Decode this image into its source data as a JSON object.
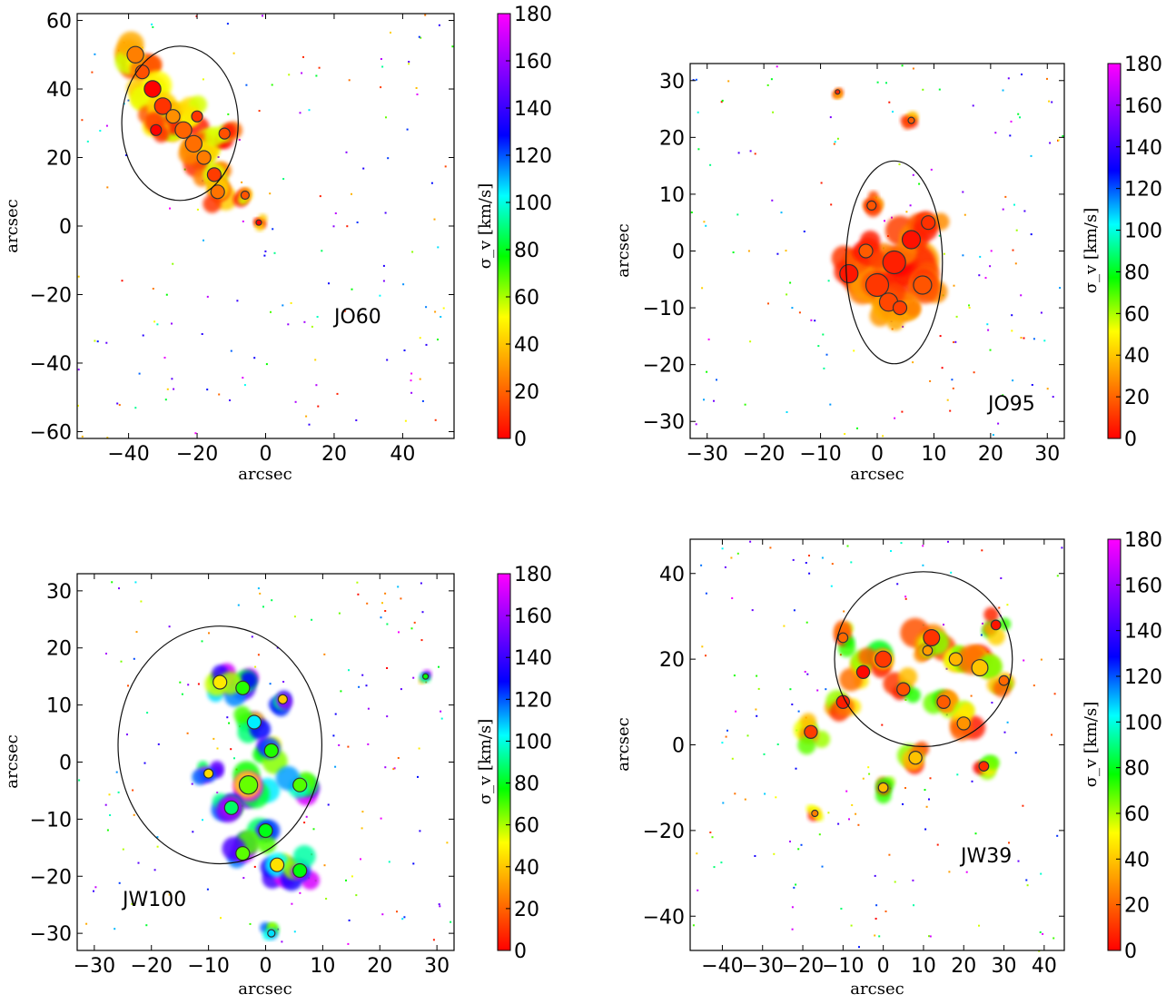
{
  "colormap": {
    "name": "gist_rainbow_r",
    "stops": [
      "#ff0000",
      "#ff8000",
      "#ffff00",
      "#00ff00",
      "#00ffff",
      "#0000ff",
      "#8000ff",
      "#ff00ff"
    ]
  },
  "chart_data": [
    {
      "type": "heatmap",
      "panel": "JO60",
      "label": "JO60",
      "xlabel": "arcsec",
      "ylabel": "arcsec",
      "xlim": [
        -55,
        55
      ],
      "ylim": [
        -62,
        62
      ],
      "xticks": [
        -40,
        -20,
        0,
        20,
        40
      ],
      "yticks": [
        -60,
        -40,
        -20,
        0,
        20,
        40,
        60
      ],
      "xtick_labels": [
        "−40",
        "−20",
        "0",
        "20",
        "40"
      ],
      "ytick_labels": [
        "−60",
        "−40",
        "−20",
        "0",
        "20",
        "40",
        "60"
      ],
      "colorbar": {
        "label": "σ_v [km/s]",
        "min": 0,
        "max": 180,
        "ticks": [
          0,
          20,
          40,
          60,
          80,
          100,
          120,
          140,
          160,
          180
        ]
      },
      "dominant_sigma_range": [
        0,
        60
      ],
      "contour_center": [
        -25,
        30
      ],
      "blobs": [
        [
          -38,
          50,
          3
        ],
        [
          -36,
          45,
          2.5
        ],
        [
          -33,
          40,
          3
        ],
        [
          -30,
          35,
          3
        ],
        [
          -27,
          32,
          2.5
        ],
        [
          -24,
          28,
          3
        ],
        [
          -21,
          24,
          3
        ],
        [
          -18,
          20,
          2.5
        ],
        [
          -15,
          15,
          2.5
        ],
        [
          -14,
          10,
          2.5
        ],
        [
          -20,
          32,
          2
        ],
        [
          -12,
          27,
          2
        ],
        [
          -32,
          28,
          2
        ],
        [
          -6,
          9,
          1.5
        ],
        [
          -2,
          1,
          1
        ]
      ]
    },
    {
      "type": "heatmap",
      "panel": "JO95",
      "label": "JO95",
      "xlabel": "arcsec",
      "ylabel": "arcsec",
      "xlim": [
        -33,
        33
      ],
      "ylim": [
        -33,
        33
      ],
      "xticks": [
        -30,
        -20,
        -10,
        0,
        10,
        20,
        30
      ],
      "yticks": [
        -30,
        -20,
        -10,
        0,
        10,
        20,
        30
      ],
      "xtick_labels": [
        "−30",
        "−20",
        "−10",
        "0",
        "10",
        "20",
        "30"
      ],
      "ytick_labels": [
        "−30",
        "−20",
        "−10",
        "0",
        "10",
        "20",
        "30"
      ],
      "colorbar": {
        "label": "σ_v [km/s]",
        "min": 0,
        "max": 180,
        "ticks": [
          0,
          20,
          40,
          60,
          80,
          100,
          120,
          140,
          160,
          180
        ]
      },
      "dominant_sigma_range": [
        0,
        40
      ],
      "contour_center": [
        3,
        -2
      ],
      "blobs": [
        [
          -5,
          -4,
          2
        ],
        [
          0,
          -6,
          2.5
        ],
        [
          3,
          -2,
          2.5
        ],
        [
          6,
          2,
          2
        ],
        [
          8,
          -6,
          2
        ],
        [
          2,
          -9,
          2
        ],
        [
          -2,
          0,
          1.5
        ],
        [
          9,
          5,
          1.5
        ],
        [
          4,
          -10,
          1.5
        ],
        [
          -1,
          8,
          1
        ],
        [
          6,
          23,
          0.7
        ],
        [
          -7,
          28,
          0.5
        ]
      ]
    },
    {
      "type": "heatmap",
      "panel": "JW100",
      "label": "JW100",
      "xlabel": "arcsec",
      "ylabel": "arcsec",
      "xlim": [
        -33,
        33
      ],
      "ylim": [
        -33,
        33
      ],
      "xticks": [
        -30,
        -20,
        -10,
        0,
        10,
        20,
        30
      ],
      "yticks": [
        -30,
        -20,
        -10,
        0,
        10,
        20,
        30
      ],
      "xtick_labels": [
        "−30",
        "−20",
        "−10",
        "0",
        "10",
        "20",
        "30"
      ],
      "ytick_labels": [
        "−30",
        "−20",
        "−10",
        "0",
        "10",
        "20",
        "30"
      ],
      "colorbar": {
        "label": "σ_v [km/s]",
        "min": 0,
        "max": 180,
        "ticks": [
          0,
          20,
          40,
          60,
          80,
          100,
          120,
          140,
          160,
          180
        ]
      },
      "dominant_sigma_range": [
        40,
        180
      ],
      "contour_center": [
        -8,
        3
      ],
      "blobs": [
        [
          -8,
          14,
          1.5
        ],
        [
          -4,
          13,
          1.5
        ],
        [
          -2,
          7,
          1.5
        ],
        [
          1,
          2,
          1.5
        ],
        [
          -3,
          -4,
          2
        ],
        [
          -6,
          -8,
          1.5
        ],
        [
          0,
          -12,
          1.5
        ],
        [
          -4,
          -16,
          1.5
        ],
        [
          2,
          -18,
          1.5
        ],
        [
          6,
          -19,
          1.5
        ],
        [
          6,
          -4,
          1.5
        ],
        [
          3,
          11,
          1
        ],
        [
          -10,
          -2,
          1
        ],
        [
          28,
          15,
          0.6
        ],
        [
          1,
          -30,
          0.8
        ]
      ]
    },
    {
      "type": "heatmap",
      "panel": "JW39",
      "label": "JW39",
      "xlabel": "arcsec",
      "ylabel": "arcsec",
      "xlim": [
        -48,
        45
      ],
      "ylim": [
        -48,
        48
      ],
      "xticks": [
        -40,
        -30,
        -20,
        -10,
        0,
        10,
        20,
        30,
        40
      ],
      "yticks": [
        -40,
        -20,
        0,
        20,
        40
      ],
      "xtick_labels": [
        "−40",
        "−30",
        "−20",
        "−10",
        "0",
        "10",
        "20",
        "30",
        "40"
      ],
      "ytick_labels": [
        "−40",
        "−20",
        "0",
        "20",
        "40"
      ],
      "colorbar": {
        "label": "σ_v [km/s]",
        "min": 0,
        "max": 180,
        "ticks": [
          0,
          20,
          40,
          60,
          80,
          100,
          120,
          140,
          160,
          180
        ]
      },
      "dominant_sigma_range": [
        0,
        80
      ],
      "contour_center": [
        10,
        20
      ],
      "blobs": [
        [
          -18,
          3,
          2
        ],
        [
          -10,
          10,
          2
        ],
        [
          -5,
          17,
          2
        ],
        [
          0,
          20,
          2.5
        ],
        [
          5,
          13,
          2
        ],
        [
          12,
          25,
          2.5
        ],
        [
          18,
          20,
          2
        ],
        [
          24,
          18,
          2.5
        ],
        [
          15,
          10,
          2
        ],
        [
          20,
          5,
          2
        ],
        [
          8,
          -3,
          2
        ],
        [
          0,
          -10,
          1.5
        ],
        [
          -10,
          25,
          1.5
        ],
        [
          28,
          28,
          1.5
        ],
        [
          11,
          22,
          1.5
        ],
        [
          30,
          15,
          1.5
        ],
        [
          25,
          -5,
          1.5
        ],
        [
          -17,
          -16,
          1
        ]
      ]
    }
  ]
}
